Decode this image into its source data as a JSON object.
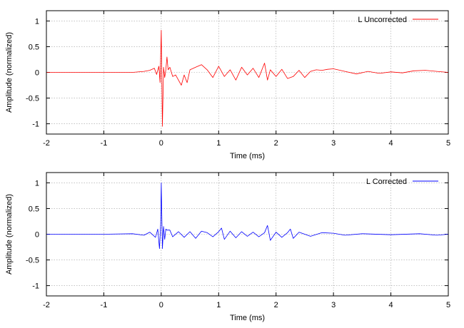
{
  "chart_data": [
    {
      "type": "line",
      "xlabel": "Time (ms)",
      "ylabel": "Amplitude (normalized)",
      "xlim": [
        -2,
        5
      ],
      "ylim": [
        -1.2,
        1.2
      ],
      "x_ticks": [
        "-2",
        "-1",
        "0",
        "1",
        "2",
        "3",
        "4",
        "5"
      ],
      "y_ticks": [
        "-1",
        "-0.5",
        "0",
        "0.5",
        "1"
      ],
      "grid": true,
      "legend_position": "top-right",
      "series": [
        {
          "name": "L Uncorrected",
          "color": "#ff0000",
          "x": [
            -2,
            -0.5,
            -0.3,
            -0.2,
            -0.12,
            -0.08,
            -0.04,
            -0.02,
            0,
            0.02,
            0.04,
            0.06,
            0.08,
            0.1,
            0.12,
            0.15,
            0.2,
            0.25,
            0.3,
            0.35,
            0.4,
            0.45,
            0.5,
            0.6,
            0.7,
            0.8,
            0.9,
            1.0,
            1.1,
            1.2,
            1.3,
            1.4,
            1.5,
            1.6,
            1.7,
            1.8,
            1.85,
            1.9,
            2.0,
            2.1,
            2.2,
            2.3,
            2.4,
            2.5,
            2.6,
            2.7,
            2.8,
            2.9,
            3.0,
            3.2,
            3.4,
            3.6,
            3.8,
            4.0,
            4.2,
            4.4,
            4.6,
            4.8,
            5.0
          ],
          "y": [
            0,
            0,
            0.02,
            0.04,
            0.08,
            -0.04,
            0.12,
            -0.2,
            0.82,
            -1.05,
            0.1,
            -0.1,
            0.05,
            0.3,
            0.05,
            0.1,
            -0.08,
            -0.05,
            -0.15,
            -0.25,
            -0.05,
            -0.2,
            0.05,
            0.1,
            0.15,
            0.05,
            -0.1,
            0.12,
            -0.08,
            0.05,
            -0.15,
            0.1,
            -0.05,
            0.08,
            -0.1,
            0.18,
            -0.15,
            0.05,
            -0.08,
            0.06,
            -0.12,
            -0.08,
            0.04,
            -0.1,
            0.02,
            0.05,
            0.04,
            0.06,
            0.07,
            0.02,
            -0.03,
            0.02,
            -0.02,
            0.01,
            -0.01,
            0.03,
            0.04,
            0.02,
            0.0
          ]
        }
      ]
    },
    {
      "type": "line",
      "xlabel": "Time (ms)",
      "ylabel": "Amplitude (normalized)",
      "xlim": [
        -2,
        5
      ],
      "ylim": [
        -1.2,
        1.2
      ],
      "x_ticks": [
        "-2",
        "-1",
        "0",
        "1",
        "2",
        "3",
        "4",
        "5"
      ],
      "y_ticks": [
        "-1",
        "-0.5",
        "0",
        "0.5",
        "1"
      ],
      "grid": true,
      "legend_position": "top-right",
      "series": [
        {
          "name": "L Corrected",
          "color": "#0000ff",
          "x": [
            -2,
            -1.0,
            -0.5,
            -0.3,
            -0.2,
            -0.1,
            -0.06,
            -0.03,
            -0.01,
            0,
            0.02,
            0.04,
            0.06,
            0.08,
            0.1,
            0.15,
            0.2,
            0.3,
            0.4,
            0.5,
            0.6,
            0.7,
            0.8,
            0.9,
            1.0,
            1.05,
            1.1,
            1.2,
            1.3,
            1.4,
            1.5,
            1.6,
            1.7,
            1.8,
            1.85,
            1.9,
            2.0,
            2.1,
            2.2,
            2.25,
            2.3,
            2.4,
            2.6,
            2.8,
            3.0,
            3.2,
            3.5,
            4.0,
            4.5,
            4.8,
            5.0
          ],
          "y": [
            0,
            0,
            0.01,
            -0.02,
            0.04,
            -0.06,
            0.1,
            -0.28,
            0.2,
            1.0,
            -0.28,
            0.15,
            -0.1,
            0.1,
            0.08,
            0.08,
            -0.05,
            0.05,
            -0.06,
            0.05,
            -0.08,
            0.06,
            0.03,
            -0.05,
            0.05,
            0.12,
            -0.1,
            0.06,
            -0.07,
            0.05,
            -0.04,
            0.04,
            -0.05,
            0.03,
            0.17,
            -0.12,
            0.04,
            -0.06,
            0.03,
            0.1,
            -0.08,
            0.04,
            -0.04,
            0.03,
            0.02,
            -0.02,
            0.01,
            -0.01,
            0.01,
            -0.02,
            0.0
          ]
        }
      ]
    }
  ]
}
